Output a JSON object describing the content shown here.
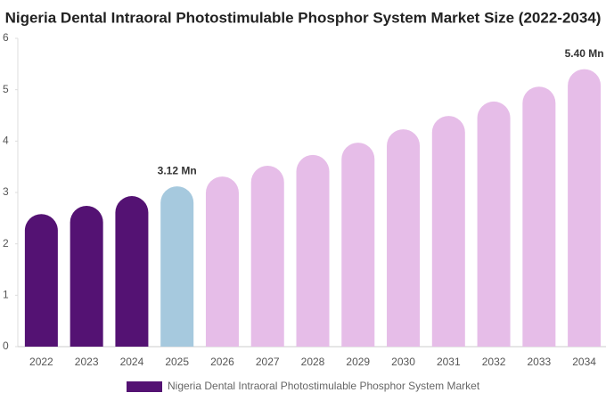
{
  "chart_data": {
    "type": "bar",
    "title": "Nigeria Dental Intraoral Photostimulable Phosphor System Market Size (2022-2034)",
    "categories": [
      "2022",
      "2023",
      "2024",
      "2025",
      "2026",
      "2027",
      "2028",
      "2029",
      "2030",
      "2031",
      "2032",
      "2033",
      "2034"
    ],
    "series": [
      {
        "name": "Nigeria Dental Intraoral Photostimulable Phosphor System Market",
        "color": "#541273",
        "values": [
          2.58,
          2.74,
          2.93,
          3.12,
          3.31,
          3.52,
          3.73,
          3.97,
          4.23,
          4.49,
          4.77,
          5.06,
          5.4
        ],
        "value_labels": [
          null,
          null,
          null,
          "3.12 Mn",
          null,
          null,
          null,
          null,
          null,
          null,
          null,
          null,
          "5.40 Mn"
        ]
      }
    ],
    "colors": [
      "#541273",
      "#541273",
      "#541273",
      "#a6c9de",
      "#e6bde8",
      "#e6bde8",
      "#e6bde8",
      "#e6bde8",
      "#e6bde8",
      "#e6bde8",
      "#e6bde8",
      "#e6bde8",
      "#e6bde8"
    ],
    "ylim": [
      0,
      6
    ],
    "yticks": [
      0,
      1,
      2,
      3,
      4,
      5,
      6
    ],
    "legend": "bottom"
  }
}
